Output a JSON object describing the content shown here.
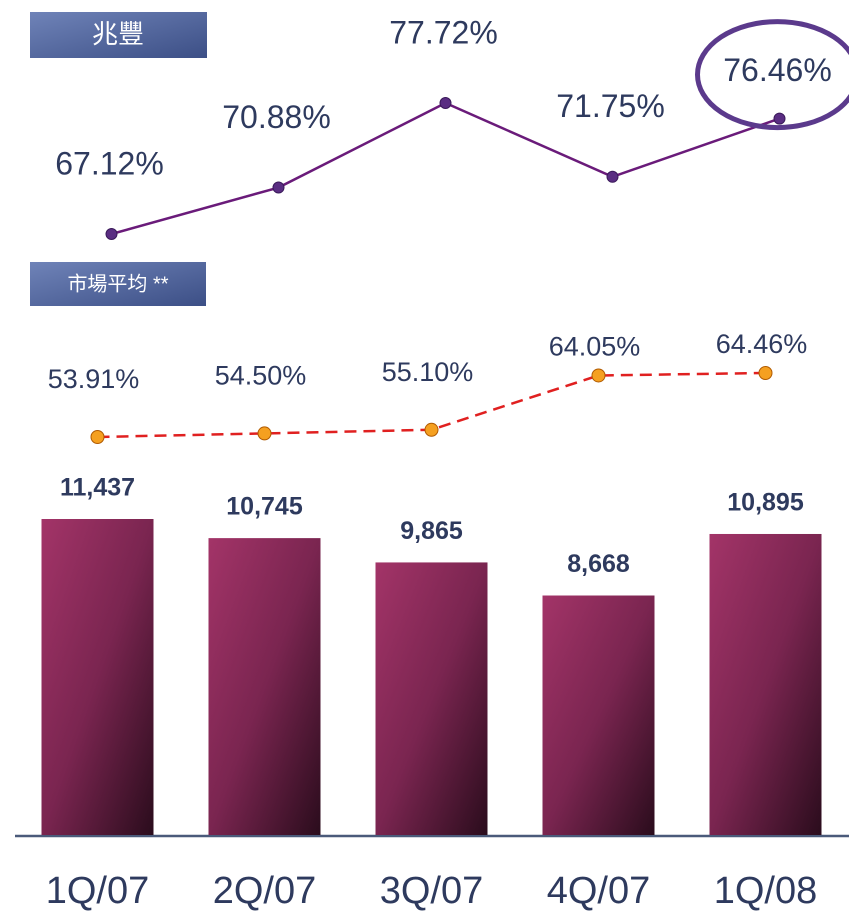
{
  "chart_data": {
    "type": "bar",
    "categories": [
      "1Q/07",
      "2Q/07",
      "3Q/07",
      "4Q/07",
      "1Q/08"
    ],
    "values": [
      11437,
      10745,
      9865,
      8668,
      10895
    ],
    "value_labels": [
      "11,437",
      "10,745",
      "9,865",
      "8,668",
      "10,895"
    ],
    "color": "#8e2c5c",
    "series": [
      {
        "name": "兆豐",
        "color": "#6a1b7a",
        "marker_color": "#5a2d82",
        "values": [
          67.12,
          70.88,
          77.72,
          71.75,
          76.46
        ],
        "value_labels": [
          "67.12%",
          "70.88%",
          "77.72%",
          "71.75%",
          "76.46%"
        ]
      },
      {
        "name": "市場平均 **",
        "color": "#e02020",
        "marker_color": "#f5a020",
        "dashed": true,
        "values": [
          53.91,
          54.5,
          55.1,
          64.05,
          64.46
        ],
        "value_labels": [
          "53.91%",
          "54.50%",
          "55.10%",
          "64.05%",
          "64.46%"
        ]
      }
    ]
  }
}
